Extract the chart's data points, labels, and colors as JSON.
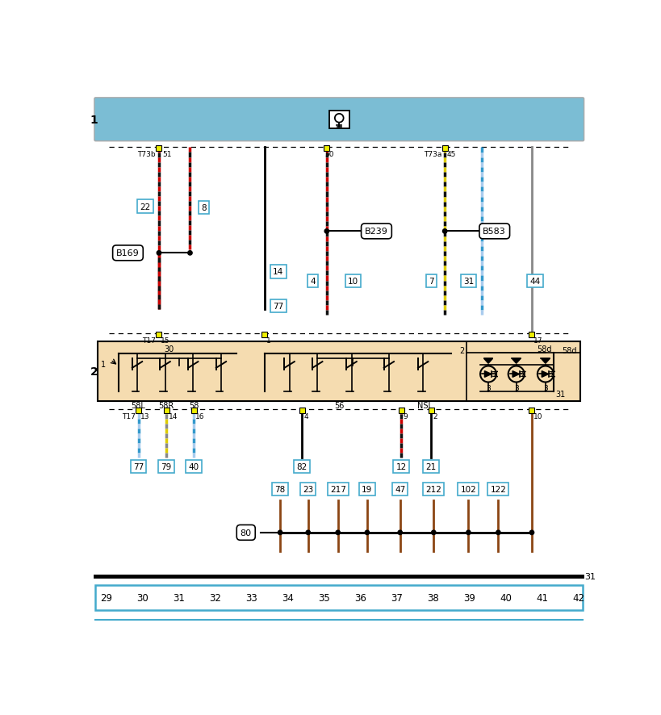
{
  "bg_color": "#ffffff",
  "top_bar_color": "#7bbdd4",
  "main_box_color": "#f5dcb0",
  "page_numbers": [
    "29",
    "30",
    "31",
    "32",
    "33",
    "34",
    "35",
    "36",
    "37",
    "38",
    "39",
    "40",
    "41",
    "42"
  ],
  "wire_red": "#cc0000",
  "wire_black": "#111111",
  "wire_yellow": "#ddcc00",
  "wire_grey": "#888888",
  "wire_blue": "#3399cc",
  "wire_blue2": "#aaccee",
  "wire_brown": "#8B4513",
  "connector_yellow": "#eeee00",
  "cyan_border": "#44aacc"
}
